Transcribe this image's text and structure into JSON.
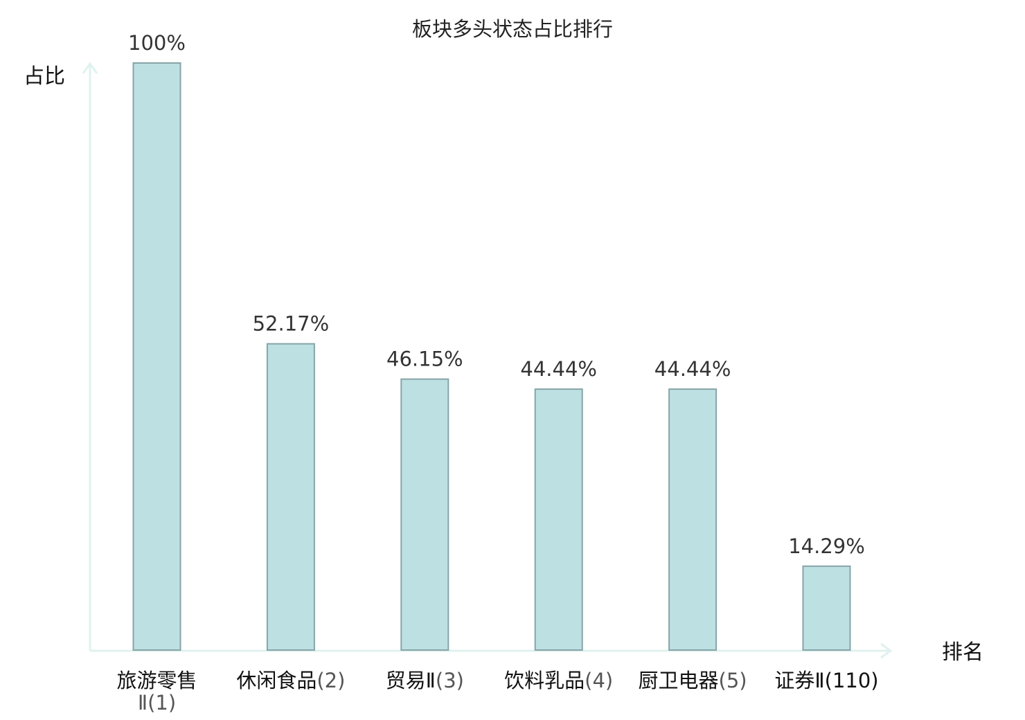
{
  "chart_data": {
    "type": "bar",
    "title": "板块多头状态占比排行",
    "ylabel": "占比",
    "xlabel": "排名",
    "ylim": [
      0,
      100
    ],
    "categories": [
      {
        "name": "旅游零售Ⅱ",
        "rank": "(1)",
        "highlight": false
      },
      {
        "name": "休闲食品",
        "rank": "(2)",
        "highlight": false
      },
      {
        "name": "贸易Ⅱ",
        "rank": "(3)",
        "highlight": false
      },
      {
        "name": "饮料乳品",
        "rank": "(4)",
        "highlight": false
      },
      {
        "name": "厨卫电器",
        "rank": "(5)",
        "highlight": false
      },
      {
        "name": "证券Ⅱ",
        "rank": "(110)",
        "highlight": true
      }
    ],
    "values": [
      100,
      52.17,
      46.15,
      44.44,
      44.44,
      14.29
    ],
    "value_labels": [
      "100%",
      "52.17%",
      "46.15%",
      "44.44%",
      "44.44%",
      "14.29%"
    ],
    "grid": false,
    "legend": "none"
  },
  "colors": {
    "bar_fill": "#bde0e3",
    "bar_stroke": "#86a4a8",
    "axis": "#dff2ef",
    "highlight_text": "#e8262a",
    "text": "#111111"
  }
}
